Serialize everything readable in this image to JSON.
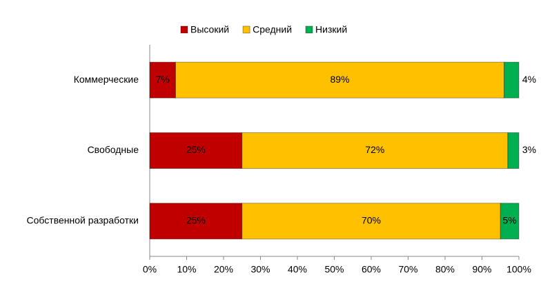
{
  "chart_data": {
    "type": "stacked-bar-horizontal",
    "categories": [
      "Коммерческие",
      "Свободные",
      "Собственной разработки"
    ],
    "series": [
      {
        "name": "Высокий",
        "color": "#c00000",
        "values": [
          7,
          25,
          25
        ],
        "value_labels": [
          "7%",
          "25%",
          "25%"
        ]
      },
      {
        "name": "Средний",
        "color": "#ffc000",
        "values": [
          89,
          72,
          70
        ],
        "value_labels": [
          "89%",
          "72%",
          "70%"
        ]
      },
      {
        "name": "Низкий",
        "color": "#00b050",
        "values": [
          4,
          3,
          5
        ],
        "value_labels": [
          "4%",
          "3%",
          "5%"
        ]
      }
    ],
    "xlim": [
      0,
      100
    ],
    "xticks": [
      {
        "value": 0,
        "label": "0%"
      },
      {
        "value": 10,
        "label": "10%"
      },
      {
        "value": 20,
        "label": "20%"
      },
      {
        "value": 30,
        "label": "30%"
      },
      {
        "value": 40,
        "label": "40%"
      },
      {
        "value": 50,
        "label": "50%"
      },
      {
        "value": 60,
        "label": "60%"
      },
      {
        "value": 70,
        "label": "70%"
      },
      {
        "value": 80,
        "label": "80%"
      },
      {
        "value": 90,
        "label": "90%"
      },
      {
        "value": 100,
        "label": "100%"
      }
    ],
    "legend": "top"
  }
}
